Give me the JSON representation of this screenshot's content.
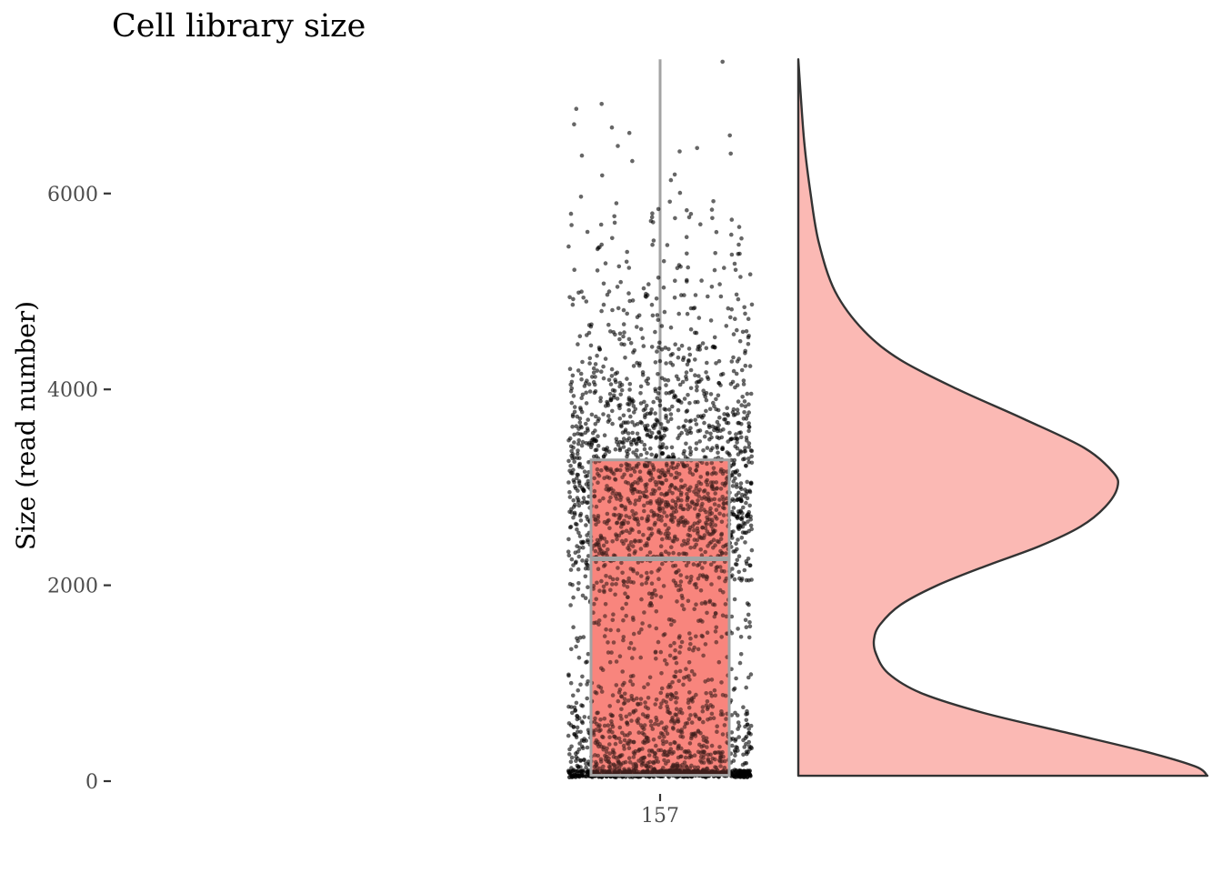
{
  "chart_data": {
    "type": "raincloud",
    "title": "Cell library size",
    "xlabel": "",
    "ylabel": "Size (read number)",
    "categories": [
      "157"
    ],
    "y_ticks": [
      0,
      2000,
      4000,
      6000
    ],
    "ylim": [
      -130,
      7400
    ],
    "grid": false,
    "legend": "none",
    "box": {
      "category": "157",
      "min": 55,
      "q1": 60,
      "median": 2270,
      "q3": 3280,
      "max": 7370
    },
    "density_points": [
      [
        55,
        1.0
      ],
      [
        150,
        0.97
      ],
      [
        300,
        0.85
      ],
      [
        500,
        0.65
      ],
      [
        700,
        0.45
      ],
      [
        900,
        0.3
      ],
      [
        1100,
        0.22
      ],
      [
        1300,
        0.19
      ],
      [
        1450,
        0.185
      ],
      [
        1600,
        0.2
      ],
      [
        1800,
        0.25
      ],
      [
        2000,
        0.34
      ],
      [
        2200,
        0.46
      ],
      [
        2400,
        0.59
      ],
      [
        2600,
        0.69
      ],
      [
        2800,
        0.75
      ],
      [
        3000,
        0.78
      ],
      [
        3150,
        0.77
      ],
      [
        3400,
        0.7
      ],
      [
        3700,
        0.55
      ],
      [
        4000,
        0.39
      ],
      [
        4300,
        0.25
      ],
      [
        4600,
        0.16
      ],
      [
        5000,
        0.09
      ],
      [
        5500,
        0.05
      ],
      [
        6000,
        0.03
      ],
      [
        6500,
        0.015
      ],
      [
        7000,
        0.006
      ],
      [
        7370,
        0.0
      ]
    ],
    "colors": {
      "fill": "#f8766d",
      "cloud_fill": "#fbb9b4",
      "box_outline": "#a3a3a3",
      "points": "#000000",
      "outline": "#333333"
    }
  }
}
